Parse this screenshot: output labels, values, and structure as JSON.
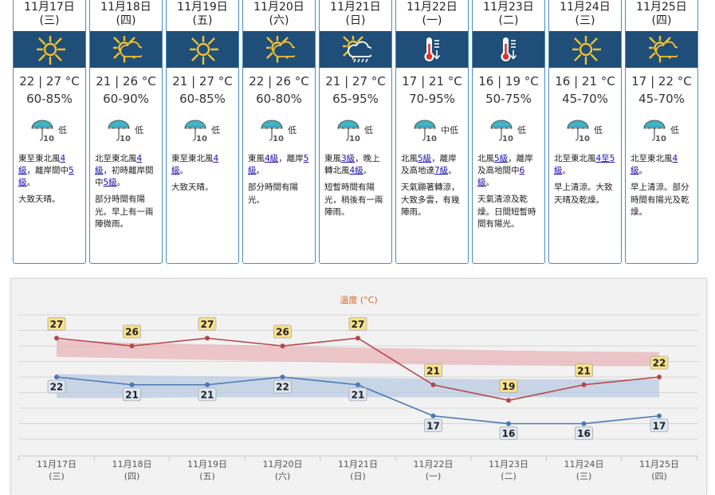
{
  "days": [
    {
      "date": "11月17日",
      "weekday": "(三)",
      "icon": "sunny-icon",
      "temp": "22 | 27 °C",
      "rh": "60-85%",
      "psr": "低",
      "wind": [
        {
          "t": "東至東北風"
        },
        {
          "t": "4",
          "link": true
        },
        {
          "t": ""
        },
        {
          "t": "級",
          "link": true
        },
        {
          "t": "，離岸間中"
        },
        {
          "t": "5",
          "link": true
        },
        {
          "t": ""
        },
        {
          "t": "級",
          "link": true
        },
        {
          "t": "。"
        }
      ],
      "desc": "大致天晴。"
    },
    {
      "date": "11月18日",
      "weekday": "(四)",
      "icon": "sunny-periods-icon",
      "temp": "21 | 26 °C",
      "rh": "60-90%",
      "psr": "低",
      "wind": [
        {
          "t": "北至東北風"
        },
        {
          "t": "4",
          "link": true
        },
        {
          "t": ""
        },
        {
          "t": "級",
          "link": true
        },
        {
          "t": "，初時離岸間中"
        },
        {
          "t": "5級",
          "link": true
        },
        {
          "t": "。"
        }
      ],
      "desc": "部分時間有陽光。早上有一兩陣微雨。"
    },
    {
      "date": "11月19日",
      "weekday": "(五)",
      "icon": "sunny-icon",
      "temp": "21 | 27 °C",
      "rh": "60-85%",
      "psr": "低",
      "wind": [
        {
          "t": "東至東北風"
        },
        {
          "t": "4",
          "link": true
        },
        {
          "t": ""
        },
        {
          "t": "級",
          "link": true
        },
        {
          "t": "。"
        }
      ],
      "desc": "大致天晴。"
    },
    {
      "date": "11月20日",
      "weekday": "(六)",
      "icon": "sunny-periods-icon",
      "temp": "22 | 26 °C",
      "rh": "60-80%",
      "psr": "低",
      "wind": [
        {
          "t": "東風"
        },
        {
          "t": "4級",
          "link": true
        },
        {
          "t": "，離岸"
        },
        {
          "t": "5級",
          "link": true
        },
        {
          "t": "。"
        }
      ],
      "desc": "部分時間有陽光。"
    },
    {
      "date": "11月21日",
      "weekday": "(日)",
      "icon": "sunny-showers-icon",
      "temp": "21 | 27 °C",
      "rh": "65-95%",
      "psr": "低",
      "wind": [
        {
          "t": "東風"
        },
        {
          "t": "3級",
          "link": true
        },
        {
          "t": "，晚上轉北風"
        },
        {
          "t": "4級",
          "link": true
        },
        {
          "t": "。"
        }
      ],
      "desc": "短暫時間有陽光，稍後有一兩陣雨。"
    },
    {
      "date": "11月22日",
      "weekday": "(一)",
      "icon": "cold-icon",
      "temp": "17 | 21 °C",
      "rh": "70-95%",
      "psr": "中低",
      "wind": [
        {
          "t": "北風"
        },
        {
          "t": "5級",
          "link": true
        },
        {
          "t": "，離岸及高地達"
        },
        {
          "t": "7級",
          "link": true
        },
        {
          "t": "。"
        }
      ],
      "desc": "天氣顯著轉涼，大致多雲，有幾陣雨。"
    },
    {
      "date": "11月23日",
      "weekday": "(二)",
      "icon": "cold-icon",
      "temp": "16 | 19 °C",
      "rh": "50-75%",
      "psr": "低",
      "wind": [
        {
          "t": "北風"
        },
        {
          "t": "5級",
          "link": true
        },
        {
          "t": "，離岸及高地間中"
        },
        {
          "t": "6",
          "link": true
        },
        {
          "t": ""
        },
        {
          "t": "級",
          "link": true
        },
        {
          "t": "。"
        }
      ],
      "desc": "天氣清涼及乾燥。日間短暫時間有陽光。"
    },
    {
      "date": "11月24日",
      "weekday": "(三)",
      "icon": "sunny-icon",
      "temp": "16 | 21 °C",
      "rh": "45-70%",
      "psr": "低",
      "wind": [
        {
          "t": "北至東北風"
        },
        {
          "t": "4至",
          "link": true
        },
        {
          "t": ""
        },
        {
          "t": "5級",
          "link": true
        },
        {
          "t": "。"
        }
      ],
      "desc": "早上清涼。大致天晴及乾燥。"
    },
    {
      "date": "11月25日",
      "weekday": "(四)",
      "icon": "sunny-periods-icon",
      "temp": "17 | 22 °C",
      "rh": "45-70%",
      "psr": "低",
      "wind": [
        {
          "t": "北至東北風"
        },
        {
          "t": "4",
          "link": true
        },
        {
          "t": ""
        },
        {
          "t": "級",
          "link": true
        },
        {
          "t": "。"
        }
      ],
      "desc": "早上清涼。部分時間有陽光及乾燥。"
    }
  ],
  "chart_data": {
    "type": "line",
    "title": "溫度 (°C)",
    "categories": [
      "11月17日",
      "11月18日",
      "11月19日",
      "11月20日",
      "11月21日",
      "11月22日",
      "11月23日",
      "11月24日",
      "11月25日"
    ],
    "weekdays": [
      "(三)",
      "(四)",
      "(五)",
      "(六)",
      "(日)",
      "(一)",
      "(二)",
      "(三)",
      "(四)"
    ],
    "series": [
      {
        "values": [
          27,
          26,
          27,
          26,
          27,
          21,
          19,
          21,
          22
        ],
        "color": "#b5474b",
        "label_bg": "#f7e08a"
      },
      {
        "values": [
          22,
          21,
          21,
          22,
          21,
          17,
          16,
          16,
          17
        ],
        "color": "#4a78b5",
        "label_bg": "#dde6f3"
      }
    ],
    "max_band": {
      "upper": [
        26.8,
        26.4,
        26.2,
        26.0,
        25.8,
        25.6,
        25.4,
        25.3,
        25.2
      ],
      "lower": [
        24.6,
        24.4,
        24.2,
        24.0,
        23.8,
        23.6,
        23.5,
        23.4,
        23.4
      ],
      "color": "#e8b5b8"
    },
    "min_band": {
      "upper": [
        22.4,
        22.2,
        22.1,
        22.0,
        21.9,
        21.8,
        21.7,
        21.7,
        21.7
      ],
      "lower": [
        19.3,
        19.3,
        19.4,
        19.4,
        19.4,
        19.4,
        19.4,
        19.4,
        19.4
      ],
      "color": "#b9cbe2"
    },
    "ylim": [
      12,
      30
    ],
    "grid": true
  }
}
